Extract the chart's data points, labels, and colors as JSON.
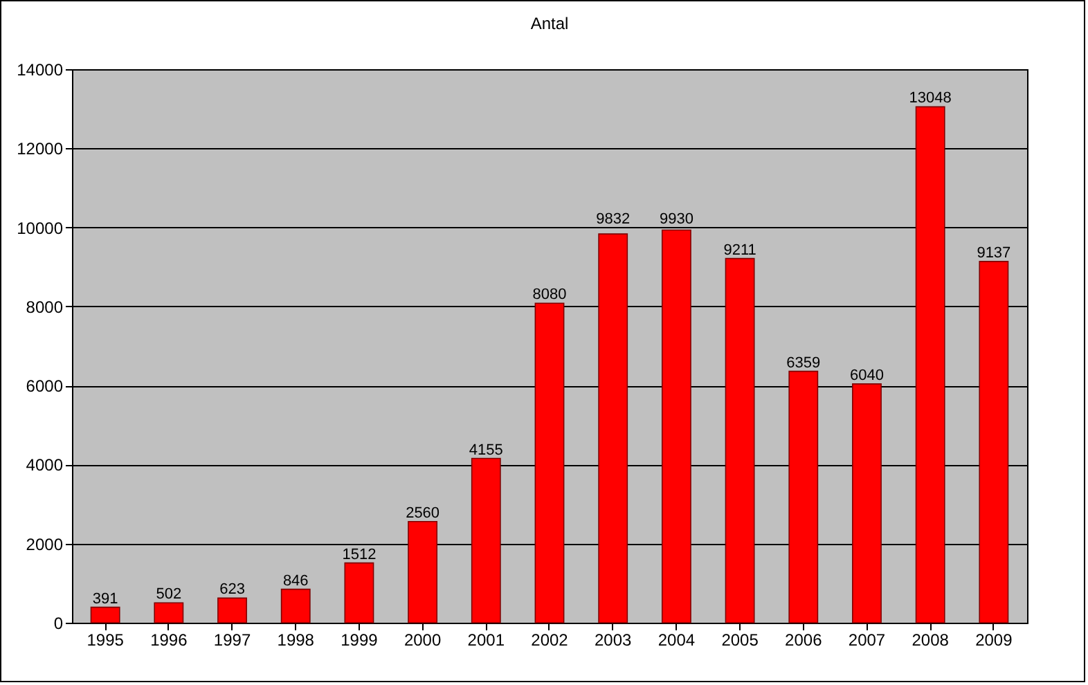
{
  "chart_data": {
    "type": "bar",
    "title": "Antal",
    "categories": [
      "1995",
      "1996",
      "1997",
      "1998",
      "1999",
      "2000",
      "2001",
      "2002",
      "2003",
      "2004",
      "2005",
      "2006",
      "2007",
      "2008",
      "2009"
    ],
    "values": [
      391,
      502,
      623,
      846,
      1512,
      2560,
      4155,
      8080,
      9832,
      9930,
      9211,
      6359,
      6040,
      13048,
      9137
    ],
    "color": "#ff0000",
    "ylim": [
      0,
      14000
    ],
    "yticks": [
      0,
      2000,
      4000,
      6000,
      8000,
      10000,
      12000,
      14000
    ],
    "grid": "y",
    "data_labels": true
  }
}
